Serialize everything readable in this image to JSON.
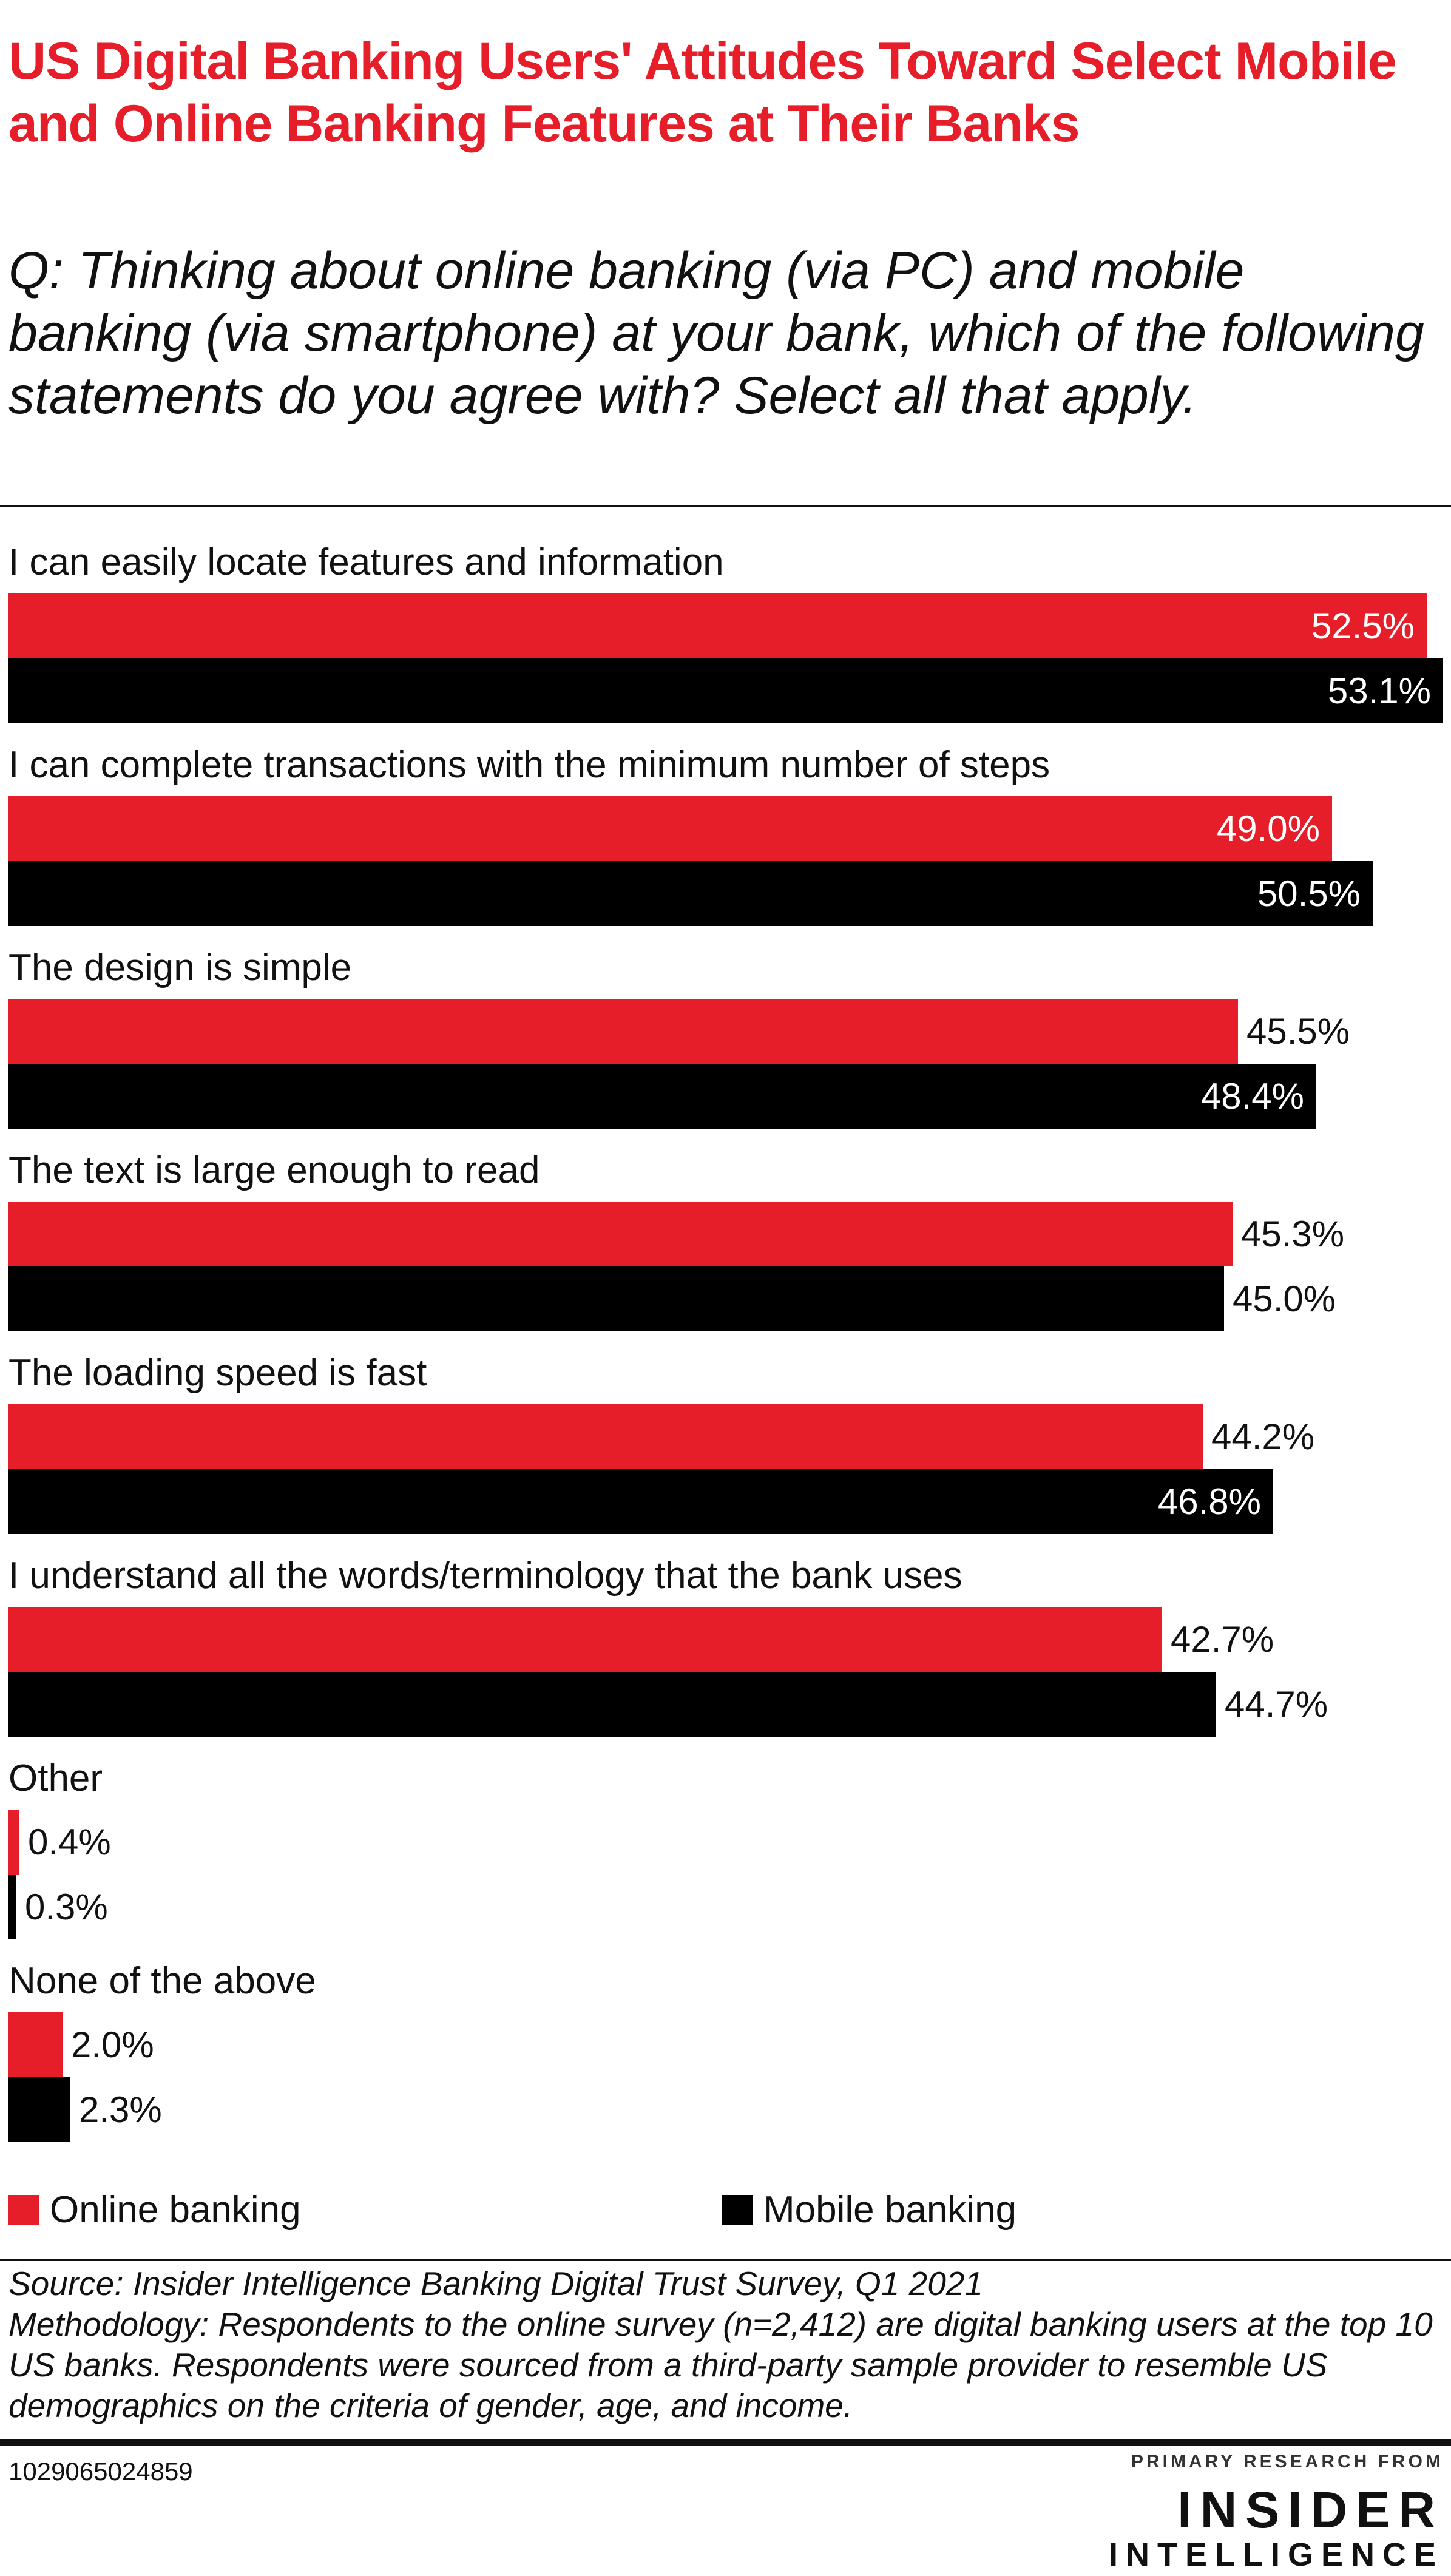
{
  "title": "US Digital Banking Users' Attitudes Toward Select Mobile and Online Banking Features at Their Banks",
  "subtitle": "Q: Thinking about online banking (via PC) and mobile banking (via smartphone) at your bank, which of the following statements do you agree with? Select all that apply.",
  "colors": {
    "online": "#e61e2a",
    "mobile": "#000000",
    "title": "#e61e2a"
  },
  "chart_data": {
    "type": "bar",
    "orientation": "horizontal",
    "categories": [
      "I can easily locate features and information",
      "I can complete transactions with the minimum number of steps",
      "The design is simple",
      "The text is large enough to read",
      "The loading speed is fast",
      "I understand all the words/terminology that the bank uses",
      "Other",
      "None of the above"
    ],
    "series": [
      {
        "name": "Online banking",
        "color": "#e61e2a",
        "values": [
          52.5,
          49.0,
          45.5,
          45.3,
          44.2,
          42.7,
          0.4,
          2.0
        ]
      },
      {
        "name": "Mobile banking",
        "color": "#000000",
        "values": [
          53.1,
          50.5,
          48.4,
          45.0,
          46.8,
          44.7,
          0.3,
          2.3
        ]
      }
    ],
    "value_suffix": "%",
    "xlim": [
      0,
      53.1
    ],
    "grid": false,
    "legend": "bottom"
  },
  "source": "Source: Insider Intelligence Banking Digital Trust Survey, Q1 2021",
  "methodology": "Methodology: Respondents to the online survey (n=2,412) are digital banking users at the top 10 US banks. Respondents were sourced from a third-party sample provider to resemble US demographics on the criteria of gender, age, and income.",
  "chart_id": "1029065024859",
  "brand": {
    "tagline": "PRIMARY RESEARCH FROM",
    "name_line1": "INSIDER",
    "name_line2": "INTELLIGENCE"
  }
}
